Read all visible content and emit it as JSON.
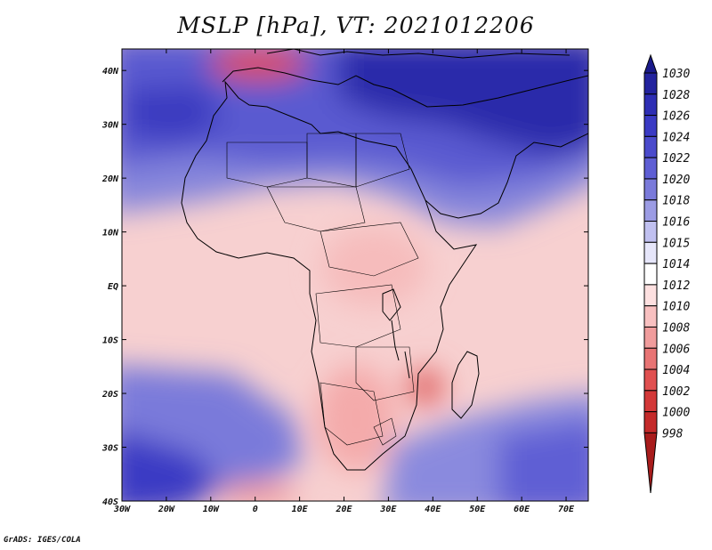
{
  "title": "MSLP [hPa], VT: 2021012206",
  "footer": "GrADS: IGES/COLA",
  "map": {
    "x_ticks": [
      "30W",
      "20W",
      "10W",
      "0",
      "10E",
      "20E",
      "30E",
      "40E",
      "50E",
      "60E",
      "70E"
    ],
    "y_ticks": [
      "40N",
      "30N",
      "20N",
      "10N",
      "EQ",
      "10S",
      "20S",
      "30S",
      "40S"
    ],
    "lon_range": [
      -30,
      75
    ],
    "lat_range": [
      -40,
      44
    ]
  },
  "colorbar": {
    "labels": [
      "1030",
      "1028",
      "1026",
      "1024",
      "1022",
      "1020",
      "1018",
      "1016",
      "1015",
      "1014",
      "1012",
      "1010",
      "1008",
      "1006",
      "1004",
      "1002",
      "1000",
      "998"
    ],
    "colors": [
      "#1a1a8a",
      "#23239e",
      "#2e2eb4",
      "#3a3ac4",
      "#4a4acc",
      "#5e5ed4",
      "#7a7ada",
      "#9c9ce4",
      "#c0c0f0",
      "#e6e6fa",
      "#ffffff",
      "#fde0e0",
      "#f8c0c0",
      "#f09c9c",
      "#e87474",
      "#e05050",
      "#d33838",
      "#c42a2a",
      "#a81c1c"
    ]
  }
}
